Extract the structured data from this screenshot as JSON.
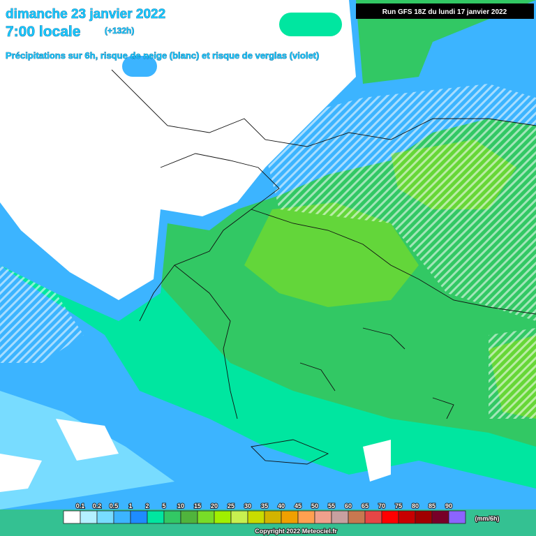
{
  "header": {
    "date": "dimanche 23 janvier 2022",
    "time": "7:00 locale",
    "lead": "(+132h)",
    "subtitle": "Précipitations sur 6h, risque de neige (blanc) et risque de verglas (violet)",
    "run": "Run GFS 18Z du lundi 17 janvier 2022"
  },
  "legend": {
    "labels": [
      "0.1",
      "0.2",
      "0.5",
      "1",
      "2",
      "5",
      "10",
      "15",
      "20",
      "25",
      "30",
      "35",
      "40",
      "45",
      "50",
      "55",
      "60",
      "65",
      "70",
      "75",
      "80",
      "85",
      "90"
    ],
    "colors": [
      "#ffffff",
      "#b4f0ff",
      "#78dcff",
      "#3cb4ff",
      "#1e8cff",
      "#00e6a0",
      "#32c864",
      "#50b43c",
      "#78dc28",
      "#a0f000",
      "#c8f050",
      "#c8dc00",
      "#d2b400",
      "#f0a000",
      "#ffa050",
      "#f0a08c",
      "#c8a0a0",
      "#c87850",
      "#e64646",
      "#ff0000",
      "#c80000",
      "#a00000",
      "#780028",
      "#8c64ff",
      "#b450ff",
      "#ff50ff"
    ],
    "unit": "(mm/6h)"
  },
  "footer": {
    "copyright": "Copyright 2022 Meteociel.fr"
  }
}
